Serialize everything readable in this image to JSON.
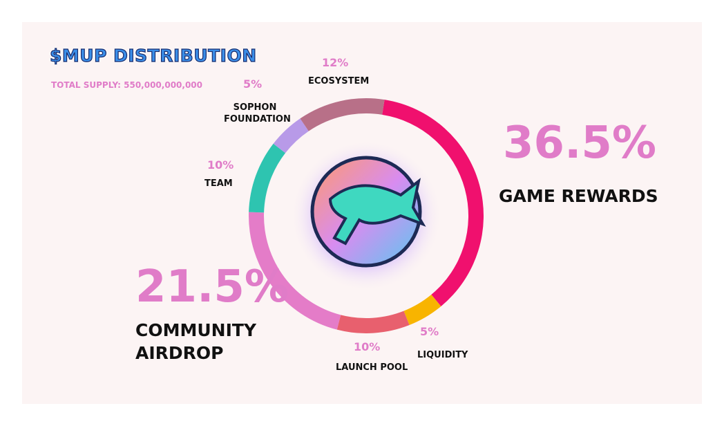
{
  "chart_data": {
    "type": "pie",
    "title": "$MUP DISTRIBUTION",
    "subtitle": "TOTAL SUPPLY: 550,000,000,000",
    "categories": [
      "GAME REWARDS",
      "LIQUIDITY",
      "LAUNCH POOL",
      "COMMUNITY AIRDROP",
      "TEAM",
      "SOPHON FOUNDATION",
      "ECOSYSTEM"
    ],
    "values": [
      36.5,
      5,
      10,
      21.5,
      10,
      5,
      12
    ],
    "value_labels": [
      "36.5%",
      "5%",
      "10%",
      "21.5%",
      "10%",
      "5%",
      "12%"
    ],
    "colors": [
      "#f0106e",
      "#f8b400",
      "#e8606e",
      "#e47cc8",
      "#2ec4b0",
      "#b89ae8",
      "#b87088"
    ]
  }
}
